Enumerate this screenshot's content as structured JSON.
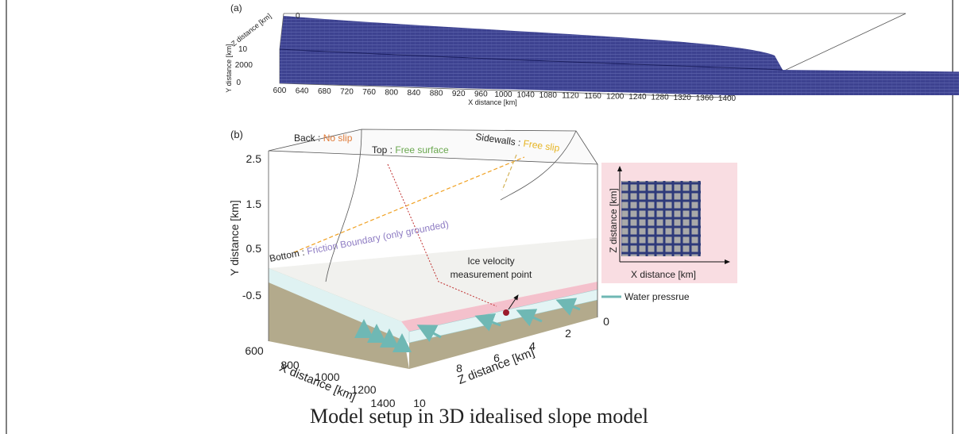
{
  "panel_a": {
    "label": "(a)",
    "x_axis_title": "X distance [km]",
    "y_axis_title": "Y distance [km]",
    "z_axis_title": "Z distance [km]",
    "x_ticks": [
      "600",
      "640",
      "680",
      "720",
      "760",
      "800",
      "840",
      "880",
      "920",
      "960",
      "1000",
      "1040",
      "1080",
      "1120",
      "1160",
      "1200",
      "1240",
      "1280",
      "1320",
      "1360",
      "1400"
    ],
    "y_ticks": [
      "0",
      "2000"
    ],
    "z_ticks": [
      "0",
      "10"
    ]
  },
  "panel_b": {
    "label": "(b)",
    "y_axis_title": "Y distance [km]",
    "x_axis_title": "X distance [km]",
    "z_axis_title": "Z distance [km]",
    "y_ticks": [
      "2.5",
      "1.5",
      "0.5",
      "-0.5"
    ],
    "x_ticks": [
      "600",
      "800",
      "1000",
      "1200",
      "1400"
    ],
    "z_ticks": [
      "0",
      "2",
      "4",
      "6",
      "8",
      "10"
    ],
    "boundaries": [
      {
        "name": "Back :",
        "condition": "No slip"
      },
      {
        "name": "Top :",
        "condition": "Free surface"
      },
      {
        "name": "Sidewalls :",
        "condition": "Free slip"
      },
      {
        "name": "Bottom :",
        "condition": "Friction Boundary (only grounded)"
      }
    ],
    "point_label": [
      "Ice velocity",
      "measurement point"
    ],
    "legend": "Water pressrue",
    "inset": {
      "x_axis_title": "X distance [km]",
      "y_axis_title": "Z distance [km]"
    }
  },
  "caption": "Model setup in 3D idealised slope model"
}
